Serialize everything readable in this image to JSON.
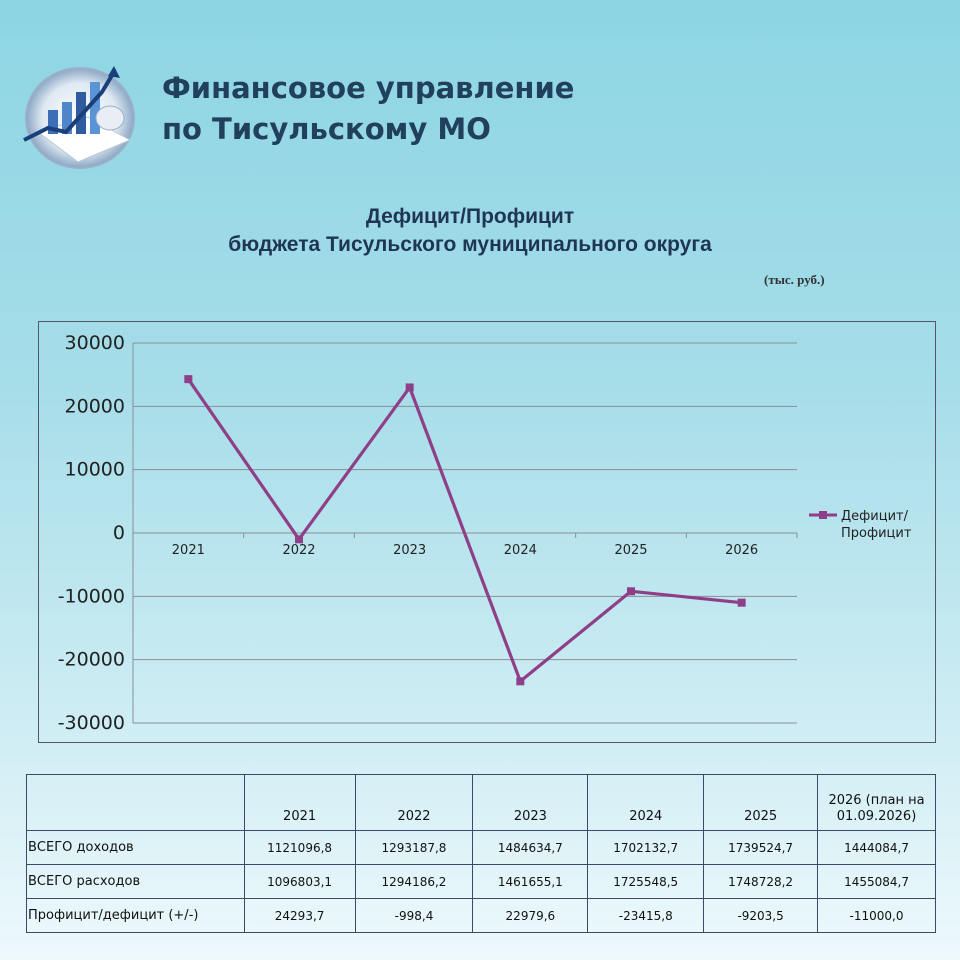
{
  "header": {
    "org_line1": "Финансовое управление",
    "org_line2": "по Тисульскому МО"
  },
  "chart_heading": {
    "line1": "Дефицит/Профицит",
    "line2": "бюджета  Тисульского муниципального округа",
    "unit": "(тыс. руб.)"
  },
  "chart_data": {
    "type": "line",
    "categories": [
      "2021",
      "2022",
      "2023",
      "2024",
      "2025",
      "2026"
    ],
    "series": [
      {
        "name": "Дефицит/ Профицит",
        "values": [
          24293.7,
          -998.4,
          22979.6,
          -23415.8,
          -9203.5,
          -11000.0
        ],
        "color": "#8e3f87"
      }
    ],
    "ylim": [
      -30000,
      30000
    ],
    "yticks": [
      "30000",
      "20000",
      "10000",
      "0",
      "-10000",
      "-20000",
      "-30000"
    ],
    "grid": true,
    "legend_position": "right"
  },
  "table": {
    "headers": [
      "",
      "2021",
      "2022",
      "2023",
      "2024",
      "2025",
      "2026 (план на 01.09.2026)"
    ],
    "rows": [
      {
        "label": "ВСЕГО доходов",
        "cells": [
          "1121096,8",
          "1293187,8",
          "1484634,7",
          "1702132,7",
          "1739524,7",
          "1444084,7"
        ]
      },
      {
        "label": "ВСЕГО расходов",
        "cells": [
          "1096803,1",
          "1294186,2",
          "1461655,1",
          "1725548,5",
          "1748728,2",
          "1455084,7"
        ]
      },
      {
        "label": "Профицит/дефицит (+/-)",
        "cells": [
          "24293,7",
          "-998,4",
          "22979,6",
          "-23415,8",
          "-9203,5",
          "-11000,0"
        ]
      }
    ]
  }
}
